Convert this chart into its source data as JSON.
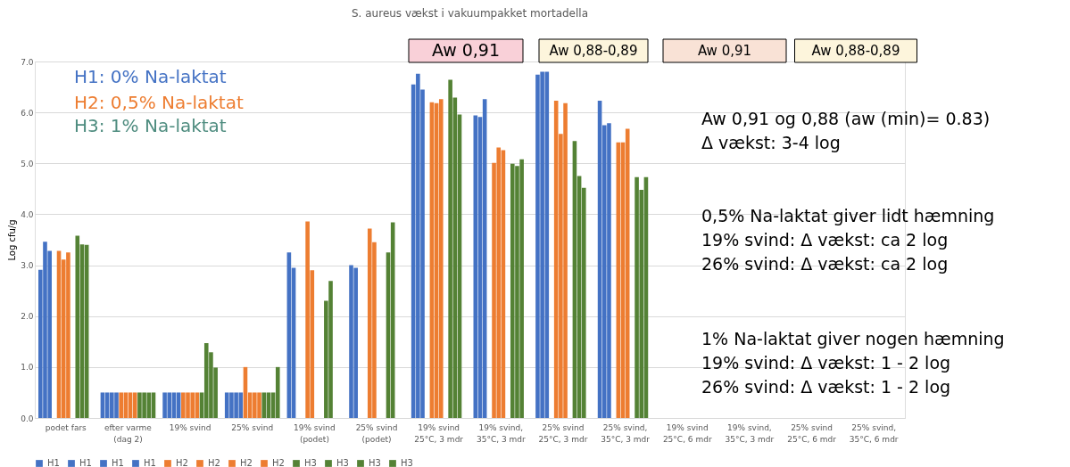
{
  "chart_data": {
    "type": "bar",
    "title": "S. aureus vækst i vakuumpakket mortadella",
    "ylabel": "Log cfu/g",
    "categories": [
      "podet fars",
      "efter varme\n(dag 2)",
      "19% svind",
      "25% svind",
      "19% svind\n(podet)",
      "25% svind\n(podet)",
      "19% svind\n25°C, 3 mdr",
      "19% svind,\n35°C, 3 mdr",
      "25% svind\n25°C, 3 mdr",
      "25% svind,\n35°C, 3 mdr",
      "19% svind\n25°C, 6 mdr",
      "19% svind,\n35°C, 3 mdr",
      "25% svind\n25°C, 6 mdr",
      "25% svind,\n35°C, 6 mdr"
    ],
    "series": [
      {
        "name": "H1",
        "color": "#4472c4",
        "values": [
          2.91,
          0.5,
          0.5,
          0.5,
          3.25,
          3.0,
          6.55,
          5.94,
          6.74,
          6.23,
          null,
          null,
          null,
          null
        ]
      },
      {
        "name": "H1",
        "color": "#4472c4",
        "values": [
          3.46,
          0.5,
          0.5,
          0.5,
          2.95,
          2.95,
          6.76,
          5.91,
          6.8,
          5.75,
          null,
          null,
          null,
          null
        ]
      },
      {
        "name": "H1",
        "color": "#4472c4",
        "values": [
          3.28,
          0.5,
          0.5,
          0.5,
          null,
          null,
          6.45,
          6.26,
          6.8,
          5.79,
          null,
          null,
          null,
          null
        ]
      },
      {
        "name": "H1",
        "color": "#4472c4",
        "values": [
          null,
          0.5,
          0.5,
          0.5,
          null,
          null,
          null,
          null,
          null,
          null,
          null,
          null,
          null,
          null
        ]
      },
      {
        "name": "H2",
        "color": "#ed7d31",
        "values": [
          3.28,
          0.5,
          0.5,
          1.0,
          3.86,
          3.72,
          6.2,
          5.01,
          6.23,
          5.41,
          null,
          null,
          null,
          null
        ]
      },
      {
        "name": "H2",
        "color": "#ed7d31",
        "values": [
          3.11,
          0.5,
          0.5,
          0.5,
          2.9,
          3.45,
          6.18,
          5.31,
          5.58,
          5.41,
          null,
          null,
          null,
          null
        ]
      },
      {
        "name": "H2",
        "color": "#ed7d31",
        "values": [
          3.25,
          0.5,
          0.5,
          0.5,
          null,
          null,
          6.26,
          5.26,
          6.18,
          5.68,
          null,
          null,
          null,
          null
        ]
      },
      {
        "name": "H2",
        "color": "#ed7d31",
        "values": [
          null,
          0.5,
          0.5,
          0.5,
          null,
          null,
          null,
          null,
          null,
          null,
          null,
          null,
          null,
          null
        ]
      },
      {
        "name": "H3",
        "color": "#548235",
        "values": [
          3.58,
          0.5,
          0.5,
          0.5,
          2.3,
          3.25,
          6.64,
          4.99,
          5.44,
          4.73,
          null,
          null,
          null,
          null
        ]
      },
      {
        "name": "H3",
        "color": "#548235",
        "values": [
          3.41,
          0.5,
          1.47,
          0.5,
          2.69,
          3.84,
          6.29,
          4.95,
          4.75,
          4.48,
          null,
          null,
          null,
          null
        ]
      },
      {
        "name": "H3",
        "color": "#548235",
        "values": [
          3.4,
          0.5,
          1.29,
          0.5,
          null,
          null,
          5.96,
          5.08,
          4.52,
          4.73,
          null,
          null,
          null,
          null
        ]
      },
      {
        "name": "H3",
        "color": "#548235",
        "values": [
          null,
          0.5,
          0.99,
          1.0,
          null,
          null,
          null,
          null,
          null,
          null,
          null,
          null,
          null,
          null
        ]
      }
    ],
    "ylim": [
      0,
      7
    ],
    "yticks": [
      {
        "value": 0,
        "label": "0.0"
      },
      {
        "value": 1,
        "label": "1.0"
      },
      {
        "value": 2,
        "label": "2.0"
      },
      {
        "value": 3,
        "label": "3.0"
      },
      {
        "value": 4,
        "label": "4.0"
      },
      {
        "value": 5,
        "label": "5.0"
      },
      {
        "value": 6,
        "label": "6.0"
      },
      {
        "value": 7,
        "label": "7.0"
      }
    ],
    "grid": "y",
    "legend": "bottom",
    "annotations": [
      "H1: 0% Na-laktat",
      "H2: 0,5% Na-laktat",
      "H3: 1% Na-laktat",
      "Aw 0,91",
      "Aw 0,88-0,89",
      "Aw 0,91",
      "Aw 0,88-0,89",
      "Aw 0,91 og 0,88 (aw (min)= 0.83)\nΔ vækst: 3-4 log",
      "0,5% Na-laktat giver lidt hæmning\n19% svind: Δ vækst: ca 2 log\n26% svind: Δ vækst: ca 2 log",
      "1% Na-laktat giver nogen hæmning\n19% svind: Δ vækst: 1 - 2 log\n26% svind: Δ vækst: 1 - 2 log"
    ]
  }
}
